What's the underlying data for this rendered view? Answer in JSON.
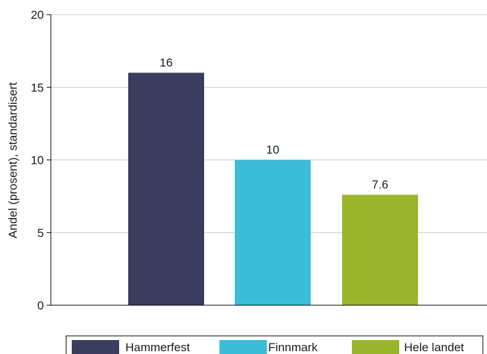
{
  "chart_data": {
    "type": "bar",
    "title": "",
    "xlabel": "",
    "ylabel": "Andel (prosent), standardisert",
    "categories": [
      "Hammerfest",
      "Finnmark",
      "Hele landet"
    ],
    "values": [
      16,
      10,
      7.6
    ],
    "data_labels": [
      "16",
      "10",
      "7.6"
    ],
    "colors": [
      "#3a3d5e",
      "#3bbcd9",
      "#9ab52b"
    ],
    "ylim": [
      0,
      20
    ],
    "yticks": [
      0,
      5,
      10,
      15,
      20
    ],
    "ytick_labels": [
      "0",
      "5",
      "10",
      "15",
      "20"
    ],
    "grid": true,
    "legend_position": "bottom"
  }
}
